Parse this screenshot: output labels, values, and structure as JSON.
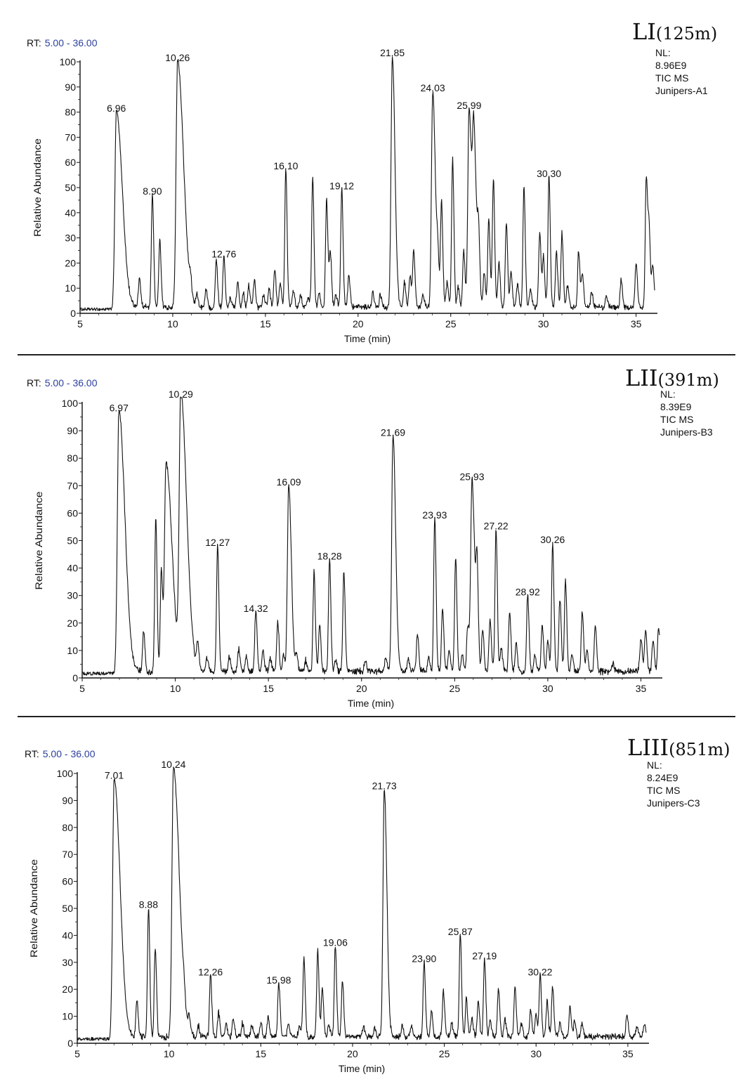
{
  "chart_data": [
    {
      "type": "line",
      "title": "LI",
      "subtitle": "(125m)",
      "rt_label": "RT:",
      "rt_range": "5.00 - 36.00",
      "info": [
        "NL:",
        "8.96E9",
        "TIC  MS",
        "Junipers-A1"
      ],
      "xlabel": "Time (min)",
      "ylabel": "Relative Abundance",
      "xlim": [
        5,
        36
      ],
      "ylim": [
        0,
        100
      ],
      "xticks": [
        5,
        10,
        15,
        20,
        25,
        30,
        35
      ],
      "yticks": [
        0,
        10,
        20,
        30,
        40,
        50,
        60,
        70,
        80,
        90,
        100
      ],
      "baseline": 1,
      "peaks": [
        {
          "x": 6.96,
          "y": 78,
          "label": "6.96"
        },
        {
          "x": 8.2,
          "y": 12
        },
        {
          "x": 8.9,
          "y": 45,
          "label": "8.90"
        },
        {
          "x": 9.3,
          "y": 27
        },
        {
          "x": 10.26,
          "y": 98,
          "label": "10.26"
        },
        {
          "x": 10.95,
          "y": 6
        },
        {
          "x": 11.3,
          "y": 5
        },
        {
          "x": 11.8,
          "y": 7
        },
        {
          "x": 12.35,
          "y": 19
        },
        {
          "x": 12.76,
          "y": 20,
          "label": "12.76"
        },
        {
          "x": 13.1,
          "y": 4
        },
        {
          "x": 13.5,
          "y": 10
        },
        {
          "x": 13.8,
          "y": 6
        },
        {
          "x": 14.1,
          "y": 9
        },
        {
          "x": 14.4,
          "y": 11
        },
        {
          "x": 14.9,
          "y": 5
        },
        {
          "x": 15.2,
          "y": 7
        },
        {
          "x": 15.5,
          "y": 15
        },
        {
          "x": 15.8,
          "y": 9
        },
        {
          "x": 16.1,
          "y": 55,
          "label": "16.10"
        },
        {
          "x": 16.5,
          "y": 7
        },
        {
          "x": 16.9,
          "y": 5
        },
        {
          "x": 17.3,
          "y": 4
        },
        {
          "x": 17.55,
          "y": 51
        },
        {
          "x": 17.9,
          "y": 6
        },
        {
          "x": 18.3,
          "y": 43
        },
        {
          "x": 18.5,
          "y": 22
        },
        {
          "x": 18.8,
          "y": 5
        },
        {
          "x": 19.12,
          "y": 47,
          "label": "19.12"
        },
        {
          "x": 19.5,
          "y": 13
        },
        {
          "x": 20.8,
          "y": 6
        },
        {
          "x": 21.2,
          "y": 5
        },
        {
          "x": 21.85,
          "y": 100,
          "label": "21.85"
        },
        {
          "x": 22.5,
          "y": 10
        },
        {
          "x": 22.8,
          "y": 13
        },
        {
          "x": 23.0,
          "y": 22
        },
        {
          "x": 23.5,
          "y": 5
        },
        {
          "x": 24.03,
          "y": 86,
          "label": "24.03"
        },
        {
          "x": 24.3,
          "y": 15
        },
        {
          "x": 24.5,
          "y": 42
        },
        {
          "x": 24.8,
          "y": 10
        },
        {
          "x": 25.1,
          "y": 59
        },
        {
          "x": 25.4,
          "y": 8
        },
        {
          "x": 25.7,
          "y": 22
        },
        {
          "x": 25.99,
          "y": 79,
          "label": "25.99"
        },
        {
          "x": 26.25,
          "y": 62
        },
        {
          "x": 26.5,
          "y": 24
        },
        {
          "x": 26.8,
          "y": 14
        },
        {
          "x": 27.05,
          "y": 36
        },
        {
          "x": 27.3,
          "y": 51
        },
        {
          "x": 27.6,
          "y": 18
        },
        {
          "x": 28.0,
          "y": 33
        },
        {
          "x": 28.25,
          "y": 14
        },
        {
          "x": 28.6,
          "y": 9
        },
        {
          "x": 28.95,
          "y": 48
        },
        {
          "x": 29.3,
          "y": 7
        },
        {
          "x": 29.8,
          "y": 30
        },
        {
          "x": 30.0,
          "y": 20
        },
        {
          "x": 30.3,
          "y": 52,
          "label": "30.30"
        },
        {
          "x": 30.7,
          "y": 22
        },
        {
          "x": 31.0,
          "y": 30
        },
        {
          "x": 31.3,
          "y": 9
        },
        {
          "x": 31.9,
          "y": 22
        },
        {
          "x": 32.1,
          "y": 13
        },
        {
          "x": 32.6,
          "y": 6
        },
        {
          "x": 33.4,
          "y": 4
        },
        {
          "x": 34.2,
          "y": 11
        },
        {
          "x": 35.0,
          "y": 18
        },
        {
          "x": 35.55,
          "y": 52
        },
        {
          "x": 35.7,
          "y": 31
        },
        {
          "x": 35.9,
          "y": 17
        }
      ]
    },
    {
      "type": "line",
      "title": "LII",
      "subtitle": "(391m)",
      "rt_label": "RT:",
      "rt_range": "5.00 - 36.00",
      "info": [
        "NL:",
        "8.39E9",
        "TIC  MS",
        "Junipers-B3"
      ],
      "xlabel": "Time (min)",
      "ylabel": "Relative Abundance",
      "xlim": [
        5,
        36
      ],
      "ylim": [
        0,
        100
      ],
      "xticks": [
        5,
        10,
        15,
        20,
        25,
        30,
        35
      ],
      "yticks": [
        0,
        10,
        20,
        30,
        40,
        50,
        60,
        70,
        80,
        90,
        100
      ],
      "baseline": 1,
      "peaks": [
        {
          "x": 6.97,
          "y": 95,
          "label": "6.97"
        },
        {
          "x": 8.3,
          "y": 15
        },
        {
          "x": 8.95,
          "y": 56
        },
        {
          "x": 9.25,
          "y": 37
        },
        {
          "x": 9.5,
          "y": 76
        },
        {
          "x": 10.29,
          "y": 100,
          "label": "10.29"
        },
        {
          "x": 11.2,
          "y": 10
        },
        {
          "x": 11.7,
          "y": 5
        },
        {
          "x": 12.27,
          "y": 46,
          "label": "12.27"
        },
        {
          "x": 12.9,
          "y": 5
        },
        {
          "x": 13.4,
          "y": 8
        },
        {
          "x": 13.8,
          "y": 5
        },
        {
          "x": 14.32,
          "y": 22,
          "label": "14.32"
        },
        {
          "x": 14.7,
          "y": 8
        },
        {
          "x": 15.1,
          "y": 5
        },
        {
          "x": 15.5,
          "y": 18
        },
        {
          "x": 15.8,
          "y": 6
        },
        {
          "x": 16.09,
          "y": 68,
          "label": "16.09"
        },
        {
          "x": 16.5,
          "y": 6
        },
        {
          "x": 17.0,
          "y": 4
        },
        {
          "x": 17.45,
          "y": 36
        },
        {
          "x": 17.75,
          "y": 17
        },
        {
          "x": 18.28,
          "y": 41,
          "label": "18.28"
        },
        {
          "x": 18.6,
          "y": 4
        },
        {
          "x": 19.05,
          "y": 36
        },
        {
          "x": 20.2,
          "y": 4
        },
        {
          "x": 21.3,
          "y": 5
        },
        {
          "x": 21.69,
          "y": 86,
          "label": "21.69"
        },
        {
          "x": 22.5,
          "y": 4
        },
        {
          "x": 23.0,
          "y": 14
        },
        {
          "x": 23.6,
          "y": 5
        },
        {
          "x": 23.93,
          "y": 56,
          "label": "23.93"
        },
        {
          "x": 24.35,
          "y": 23
        },
        {
          "x": 24.7,
          "y": 8
        },
        {
          "x": 25.05,
          "y": 42
        },
        {
          "x": 25.4,
          "y": 6
        },
        {
          "x": 25.7,
          "y": 17
        },
        {
          "x": 25.93,
          "y": 70,
          "label": "25.93"
        },
        {
          "x": 26.2,
          "y": 34
        },
        {
          "x": 26.5,
          "y": 15
        },
        {
          "x": 26.9,
          "y": 19
        },
        {
          "x": 27.22,
          "y": 52,
          "label": "27.22"
        },
        {
          "x": 27.5,
          "y": 8
        },
        {
          "x": 27.95,
          "y": 22
        },
        {
          "x": 28.3,
          "y": 10
        },
        {
          "x": 28.92,
          "y": 28,
          "label": "28.92"
        },
        {
          "x": 29.3,
          "y": 6
        },
        {
          "x": 29.7,
          "y": 17
        },
        {
          "x": 30.0,
          "y": 11
        },
        {
          "x": 30.26,
          "y": 47,
          "label": "30.26"
        },
        {
          "x": 30.65,
          "y": 27
        },
        {
          "x": 30.95,
          "y": 33
        },
        {
          "x": 31.3,
          "y": 6
        },
        {
          "x": 31.85,
          "y": 22
        },
        {
          "x": 32.1,
          "y": 8
        },
        {
          "x": 32.55,
          "y": 17
        },
        {
          "x": 33.5,
          "y": 3
        },
        {
          "x": 35.0,
          "y": 12
        },
        {
          "x": 35.25,
          "y": 15
        },
        {
          "x": 35.65,
          "y": 11
        },
        {
          "x": 35.95,
          "y": 16
        }
      ]
    },
    {
      "type": "line",
      "title": "LIII",
      "subtitle": "(851m)",
      "rt_label": "RT:",
      "rt_range": "5.00 - 36.00",
      "info": [
        "NL:",
        "8.24E9",
        "TIC  MS",
        "Junipers-C3"
      ],
      "xlabel": "Time (min)",
      "ylabel": "Relative Abundance",
      "xlim": [
        5,
        36
      ],
      "ylim": [
        0,
        100
      ],
      "xticks": [
        5,
        10,
        15,
        20,
        25,
        30,
        35
      ],
      "yticks": [
        0,
        10,
        20,
        30,
        40,
        50,
        60,
        70,
        80,
        90,
        100
      ],
      "baseline": 1,
      "peaks": [
        {
          "x": 7.01,
          "y": 96,
          "label": "7.01"
        },
        {
          "x": 8.25,
          "y": 13
        },
        {
          "x": 8.88,
          "y": 48,
          "label": "8.88"
        },
        {
          "x": 9.25,
          "y": 33
        },
        {
          "x": 10.24,
          "y": 100,
          "label": "10.24"
        },
        {
          "x": 10.8,
          "y": 5
        },
        {
          "x": 11.1,
          "y": 6
        },
        {
          "x": 11.6,
          "y": 4
        },
        {
          "x": 12.26,
          "y": 23,
          "label": "12.26"
        },
        {
          "x": 12.7,
          "y": 9
        },
        {
          "x": 13.1,
          "y": 5
        },
        {
          "x": 13.5,
          "y": 7
        },
        {
          "x": 14.0,
          "y": 5
        },
        {
          "x": 14.5,
          "y": 4
        },
        {
          "x": 15.0,
          "y": 5
        },
        {
          "x": 15.4,
          "y": 7
        },
        {
          "x": 15.98,
          "y": 20,
          "label": "15.98"
        },
        {
          "x": 16.5,
          "y": 5
        },
        {
          "x": 17.1,
          "y": 4
        },
        {
          "x": 17.35,
          "y": 29
        },
        {
          "x": 18.1,
          "y": 32
        },
        {
          "x": 18.35,
          "y": 18
        },
        {
          "x": 18.7,
          "y": 4
        },
        {
          "x": 19.06,
          "y": 34,
          "label": "19.06"
        },
        {
          "x": 19.45,
          "y": 21
        },
        {
          "x": 20.6,
          "y": 4
        },
        {
          "x": 21.2,
          "y": 3
        },
        {
          "x": 21.73,
          "y": 92,
          "label": "21.73"
        },
        {
          "x": 22.7,
          "y": 4
        },
        {
          "x": 23.2,
          "y": 4
        },
        {
          "x": 23.9,
          "y": 28,
          "label": "23.90"
        },
        {
          "x": 24.3,
          "y": 9
        },
        {
          "x": 24.95,
          "y": 17
        },
        {
          "x": 25.4,
          "y": 5
        },
        {
          "x": 25.87,
          "y": 38,
          "label": "25.87"
        },
        {
          "x": 26.2,
          "y": 14
        },
        {
          "x": 26.5,
          "y": 7
        },
        {
          "x": 26.85,
          "y": 13
        },
        {
          "x": 27.19,
          "y": 29,
          "label": "27.19"
        },
        {
          "x": 27.5,
          "y": 6
        },
        {
          "x": 27.95,
          "y": 18
        },
        {
          "x": 28.3,
          "y": 7
        },
        {
          "x": 28.85,
          "y": 18
        },
        {
          "x": 29.2,
          "y": 5
        },
        {
          "x": 29.7,
          "y": 10
        },
        {
          "x": 30.0,
          "y": 8
        },
        {
          "x": 30.22,
          "y": 23,
          "label": "30.22"
        },
        {
          "x": 30.6,
          "y": 13
        },
        {
          "x": 30.9,
          "y": 19
        },
        {
          "x": 31.3,
          "y": 5
        },
        {
          "x": 31.85,
          "y": 11
        },
        {
          "x": 32.1,
          "y": 6
        },
        {
          "x": 32.5,
          "y": 5
        },
        {
          "x": 34.95,
          "y": 8
        },
        {
          "x": 35.5,
          "y": 4
        },
        {
          "x": 35.9,
          "y": 5
        }
      ]
    }
  ]
}
